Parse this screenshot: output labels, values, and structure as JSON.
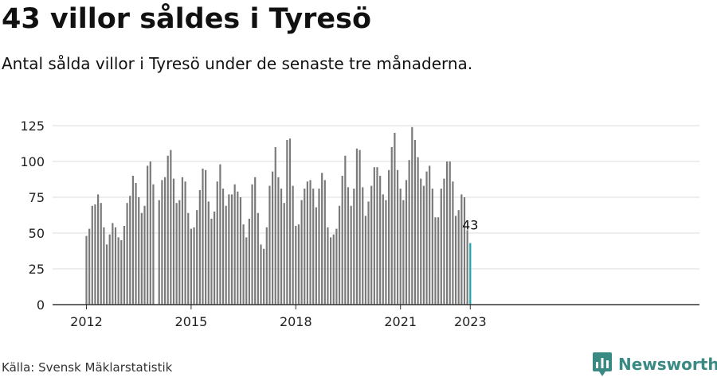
{
  "header": {
    "title": "43 villor såldes i Tyresö",
    "subtitle": "Antal sålda villor i Tyresö under de senaste tre månaderna."
  },
  "footer": {
    "source": "Källa: Svensk Mäklarstatistik",
    "brand": "Newsworthy"
  },
  "colors": {
    "bar": "#7a7a7a",
    "highlight": "#1aa3b0",
    "grid": "#dddddd",
    "axis": "#333333",
    "brand": "#3a8a84"
  },
  "chart_data": {
    "type": "bar",
    "x_start": "2012-01",
    "x_tick_labels": [
      "2012",
      "2015",
      "2018",
      "2021",
      "2023"
    ],
    "y_ticks": [
      0,
      25,
      50,
      75,
      100,
      125
    ],
    "ylim": [
      0,
      125
    ],
    "grid": true,
    "highlight_label": "43",
    "values": [
      48,
      53,
      69,
      70,
      77,
      71,
      54,
      42,
      49,
      57,
      54,
      47,
      45,
      55,
      71,
      76,
      90,
      85,
      75,
      64,
      69,
      97,
      100,
      84,
      0,
      73,
      87,
      89,
      104,
      108,
      88,
      71,
      73,
      89,
      86,
      64,
      53,
      54,
      66,
      80,
      95,
      94,
      72,
      60,
      65,
      86,
      98,
      81,
      69,
      77,
      77,
      84,
      79,
      75,
      56,
      47,
      60,
      84,
      89,
      64,
      42,
      39,
      54,
      83,
      93,
      110,
      89,
      81,
      71,
      115,
      116,
      83,
      55,
      56,
      73,
      81,
      86,
      87,
      81,
      68,
      81,
      92,
      87,
      54,
      47,
      49,
      53,
      69,
      90,
      104,
      82,
      69,
      81,
      109,
      108,
      82,
      62,
      72,
      83,
      96,
      96,
      90,
      77,
      73,
      94,
      110,
      120,
      94,
      81,
      73,
      87,
      101,
      124,
      115,
      103,
      88,
      83,
      93,
      97,
      81,
      61,
      61,
      81,
      88,
      100,
      100,
      86,
      62,
      66,
      77,
      75,
      52,
      43
    ]
  }
}
